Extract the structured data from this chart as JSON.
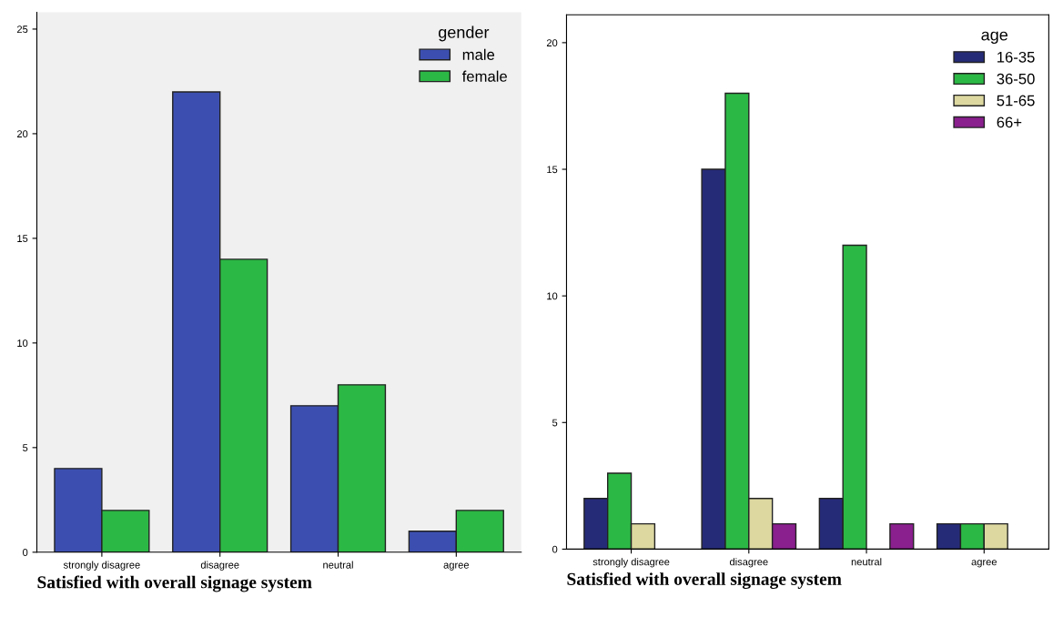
{
  "chart_data": [
    {
      "type": "bar",
      "xlabel": "Satisfied with overall signage system",
      "categories": [
        "strongly disagree",
        "disagree",
        "neutral",
        "agree"
      ],
      "legend_title": "gender",
      "legend": "top right",
      "ylim": [
        0,
        25.8
      ],
      "yticks": [
        0,
        5,
        10,
        15,
        20,
        25
      ],
      "series": [
        {
          "name": "male",
          "color": "#3c4fb0",
          "values": [
            4,
            22,
            7,
            1
          ]
        },
        {
          "name": "female",
          "color": "#2cb845",
          "values": [
            2,
            14,
            8,
            2
          ]
        }
      ]
    },
    {
      "type": "bar",
      "xlabel": "Satisfied with overall signage system",
      "categories": [
        "strongly disagree",
        "disagree",
        "neutral",
        "agree"
      ],
      "legend_title": "age",
      "legend": "top right",
      "ylim": [
        0,
        21.1
      ],
      "yticks": [
        0,
        5,
        10,
        15,
        20
      ],
      "series": [
        {
          "name": "16-35",
          "color": "#262b78",
          "values": [
            2,
            15,
            2,
            1
          ]
        },
        {
          "name": "36-50",
          "color": "#2cb845",
          "values": [
            3,
            18,
            12,
            1
          ]
        },
        {
          "name": "51-65",
          "color": "#dcd8a0",
          "values": [
            1,
            2,
            null,
            1
          ]
        },
        {
          "name": "66+",
          "color": "#8a1f8e",
          "values": [
            null,
            1,
            1,
            null
          ]
        }
      ]
    }
  ]
}
